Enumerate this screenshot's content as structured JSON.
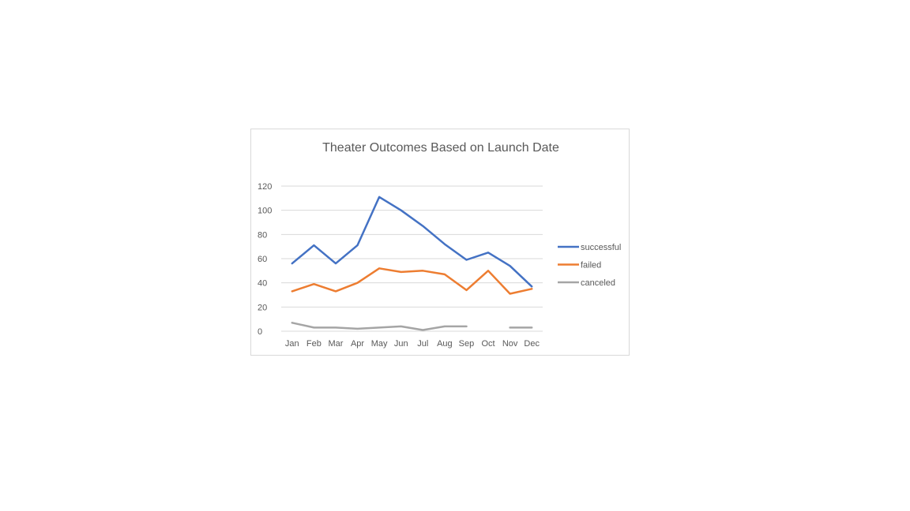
{
  "chart_data": {
    "type": "line",
    "title": "Theater Outcomes Based on Launch Date",
    "xlabel": "",
    "ylabel": "",
    "categories": [
      "Jan",
      "Feb",
      "Mar",
      "Apr",
      "May",
      "Jun",
      "Jul",
      "Aug",
      "Sep",
      "Oct",
      "Nov",
      "Dec"
    ],
    "ylim": [
      0,
      120
    ],
    "yticks": [
      "0",
      "20",
      "40",
      "60",
      "80",
      "100",
      "120"
    ],
    "grid": true,
    "legend_position": "right",
    "series": [
      {
        "name": "successful",
        "color": "#4472C4",
        "values": [
          56,
          71,
          56,
          71,
          111,
          100,
          87,
          72,
          59,
          65,
          54,
          37
        ]
      },
      {
        "name": "failed",
        "color": "#ED7D31",
        "values": [
          33,
          39,
          33,
          40,
          52,
          49,
          50,
          47,
          34,
          50,
          31,
          35
        ]
      },
      {
        "name": "canceled",
        "color": "#A5A5A5",
        "values": [
          7,
          3,
          3,
          2,
          3,
          4,
          1,
          4,
          4,
          null,
          3,
          3
        ]
      }
    ]
  }
}
